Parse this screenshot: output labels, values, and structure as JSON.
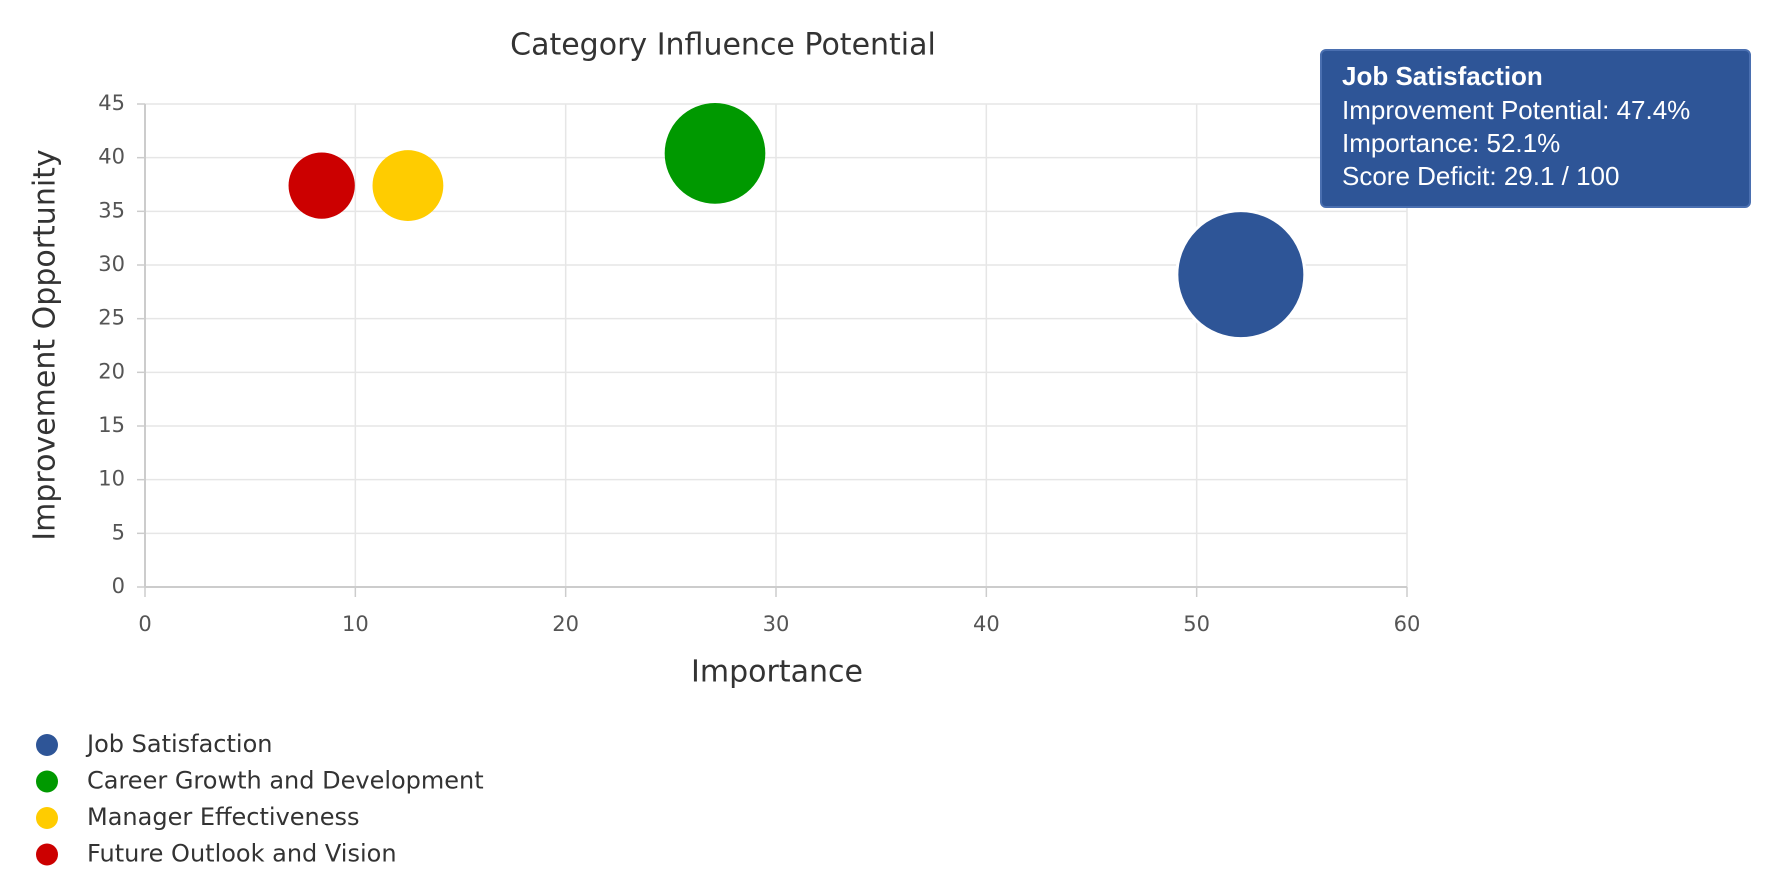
{
  "chart_data": {
    "type": "bubble",
    "title": "Category Influence Potential",
    "x_label": "Importance",
    "y_label": "Improvement Opportunity",
    "xlim": [
      0,
      60
    ],
    "xticks": [
      0,
      10,
      20,
      30,
      40,
      50,
      60
    ],
    "ylim": [
      0,
      45
    ],
    "yticks": [
      0,
      5,
      10,
      15,
      20,
      25,
      30,
      35,
      40,
      45
    ],
    "grid": true,
    "legend": "bottom-left",
    "series": [
      {
        "name": "Job Satisfaction",
        "color": "#2e5597",
        "x": [
          52.1
        ],
        "values": [
          29.1
        ],
        "sizes": [
          47.4
        ]
      },
      {
        "name": "Career Growth and Development",
        "color": "#009900",
        "x": [
          27.1
        ],
        "values": [
          40.4
        ],
        "sizes": [
          29.3
        ]
      },
      {
        "name": "Manager Effectiveness",
        "color": "#ffcc00",
        "x": [
          12.5
        ],
        "values": [
          37.4
        ],
        "sizes": [
          14.5
        ]
      },
      {
        "name": "Future Outlook and Vision",
        "color": "#cc0000",
        "x": [
          8.4
        ],
        "values": [
          37.4
        ],
        "sizes": [
          12.7
        ]
      }
    ],
    "tooltip": {
      "title": "Job Satisfaction",
      "lines": [
        "Improvement Potential: 47.4%",
        "Importance: 52.1%",
        "Score Deficit: 29.1 / 100"
      ]
    }
  }
}
